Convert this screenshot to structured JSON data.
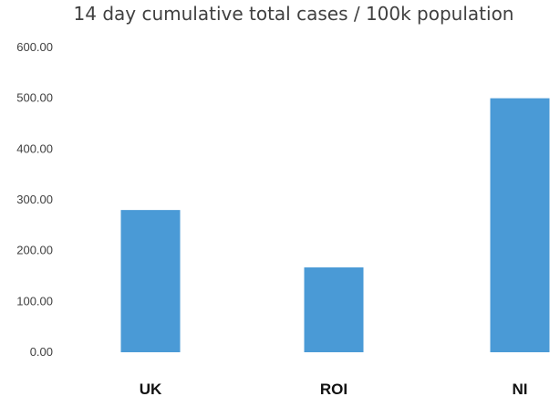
{
  "chart_data": {
    "type": "bar",
    "title": "14 day cumulative total cases / 100k population",
    "xlabel": "",
    "ylabel": "",
    "categories": [
      "UK",
      "ROI",
      "NI"
    ],
    "values": [
      280,
      167,
      500
    ],
    "ylim": [
      0,
      600
    ],
    "yticks": [
      "0.00",
      "100.00",
      "200.00",
      "300.00",
      "400.00",
      "500.00",
      "600.00"
    ],
    "grid": false,
    "legend": "none",
    "bar_color": "#4a9ad6"
  }
}
